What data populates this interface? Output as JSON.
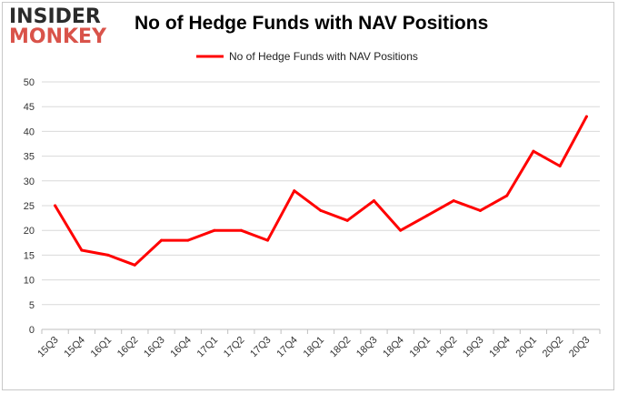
{
  "logo": {
    "line1": "INSIDER",
    "line2": "MONKEY"
  },
  "chart_data": {
    "type": "line",
    "title": "No of Hedge Funds with NAV Positions",
    "xlabel": "",
    "ylabel": "",
    "categories": [
      "15Q3",
      "15Q4",
      "16Q1",
      "16Q2",
      "16Q3",
      "16Q4",
      "17Q1",
      "17Q2",
      "17Q3",
      "17Q4",
      "18Q1",
      "18Q2",
      "18Q3",
      "18Q4",
      "19Q1",
      "19Q2",
      "19Q3",
      "19Q4",
      "20Q1",
      "20Q2",
      "20Q3"
    ],
    "series": [
      {
        "name": "No of Hedge Funds with NAV Positions",
        "color": "#ff0000",
        "values": [
          25,
          16,
          15,
          13,
          18,
          18,
          20,
          20,
          18,
          28,
          24,
          22,
          26,
          20,
          23,
          26,
          24,
          27,
          36,
          33,
          43
        ]
      }
    ],
    "ylim": [
      0,
      50
    ],
    "yticks": [
      0,
      5,
      10,
      15,
      20,
      25,
      30,
      35,
      40,
      45,
      50
    ],
    "grid": true,
    "legend": "top-center"
  }
}
